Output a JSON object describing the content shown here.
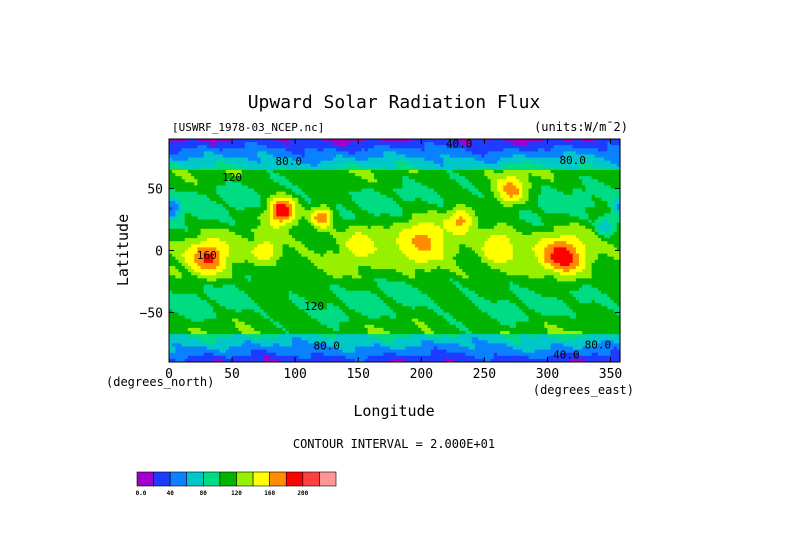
{
  "chart_data": {
    "type": "heatmap",
    "title": "Upward Solar Radiation Flux",
    "dataset_label": "[USWRF_1978-03_NCEP.nc]",
    "units_label": "(units:W/m¯2)",
    "xlabel": "Longitude",
    "ylabel": "Latitude",
    "x_unit": "(degrees_east)",
    "y_unit": "(degrees_north)",
    "xlim": [
      0,
      357.5
    ],
    "ylim": [
      -90,
      90
    ],
    "x_ticks": [
      "0",
      "50",
      "100",
      "150",
      "200",
      "250",
      "300",
      "350"
    ],
    "x_tick_values": [
      0,
      50,
      100,
      150,
      200,
      250,
      300,
      350
    ],
    "y_ticks": [
      "50",
      "0",
      "−50"
    ],
    "y_tick_values": [
      50,
      0,
      -50
    ],
    "contour_interval_text": "CONTOUR INTERVAL = 2.000E+01",
    "contour_labels": [
      {
        "text": "40.0",
        "lon": 230,
        "lat": 83
      },
      {
        "text": "80.0",
        "lon": 95,
        "lat": 69
      },
      {
        "text": "80.0",
        "lon": 320,
        "lat": 70
      },
      {
        "text": "120",
        "lon": 50,
        "lat": 56
      },
      {
        "text": "120",
        "lon": 115,
        "lat": -48
      },
      {
        "text": "160",
        "lon": 30,
        "lat": -7
      },
      {
        "text": "80.0",
        "lon": 125,
        "lat": -80
      },
      {
        "text": "80.0",
        "lon": 340,
        "lat": -79
      },
      {
        "text": "40.0",
        "lon": 315,
        "lat": -87
      }
    ],
    "colorbar": {
      "levels": [
        0,
        20,
        40,
        60,
        80,
        100,
        120,
        140,
        160,
        180,
        200,
        220
      ],
      "colors": [
        "#a000c8",
        "#1e3cff",
        "#0a82ff",
        "#00c8c8",
        "#00dc82",
        "#00b400",
        "#96f000",
        "#ffff00",
        "#ff8c00",
        "#ff0000",
        "#ff4040",
        "#ff9696"
      ],
      "tick_labels": [
        "0.0",
        "40",
        "80",
        "120",
        "160",
        "200"
      ],
      "tick_values": [
        0,
        40,
        80,
        120,
        160,
        200
      ]
    },
    "features": [
      {
        "lon": 30,
        "lat": -5,
        "value": 185,
        "spread": 10
      },
      {
        "lon": 310,
        "lat": -5,
        "value": 195,
        "spread": 12
      },
      {
        "lon": 88,
        "lat": 33,
        "value": 200,
        "spread": 8
      },
      {
        "lon": 120,
        "lat": 28,
        "value": 180,
        "spread": 6
      },
      {
        "lon": 270,
        "lat": 50,
        "value": 170,
        "spread": 9
      },
      {
        "lon": 230,
        "lat": 25,
        "value": 165,
        "spread": 8
      },
      {
        "lon": 200,
        "lat": 8,
        "value": 165,
        "spread": 14
      },
      {
        "lon": 260,
        "lat": 5,
        "value": 160,
        "spread": 10
      },
      {
        "lon": 150,
        "lat": 8,
        "value": 150,
        "spread": 10
      },
      {
        "lon": 75,
        "lat": 0,
        "value": 160,
        "spread": 7
      },
      {
        "lon": 360,
        "lat": 35,
        "value": 35,
        "spread": 6
      },
      {
        "lon": 345,
        "lat": 20,
        "value": 60,
        "spread": 5
      },
      {
        "lon": 80,
        "lat": -25,
        "value": 110,
        "spread": 10
      },
      {
        "lon": 300,
        "lat": -25,
        "value": 115,
        "spread": 8
      }
    ]
  }
}
